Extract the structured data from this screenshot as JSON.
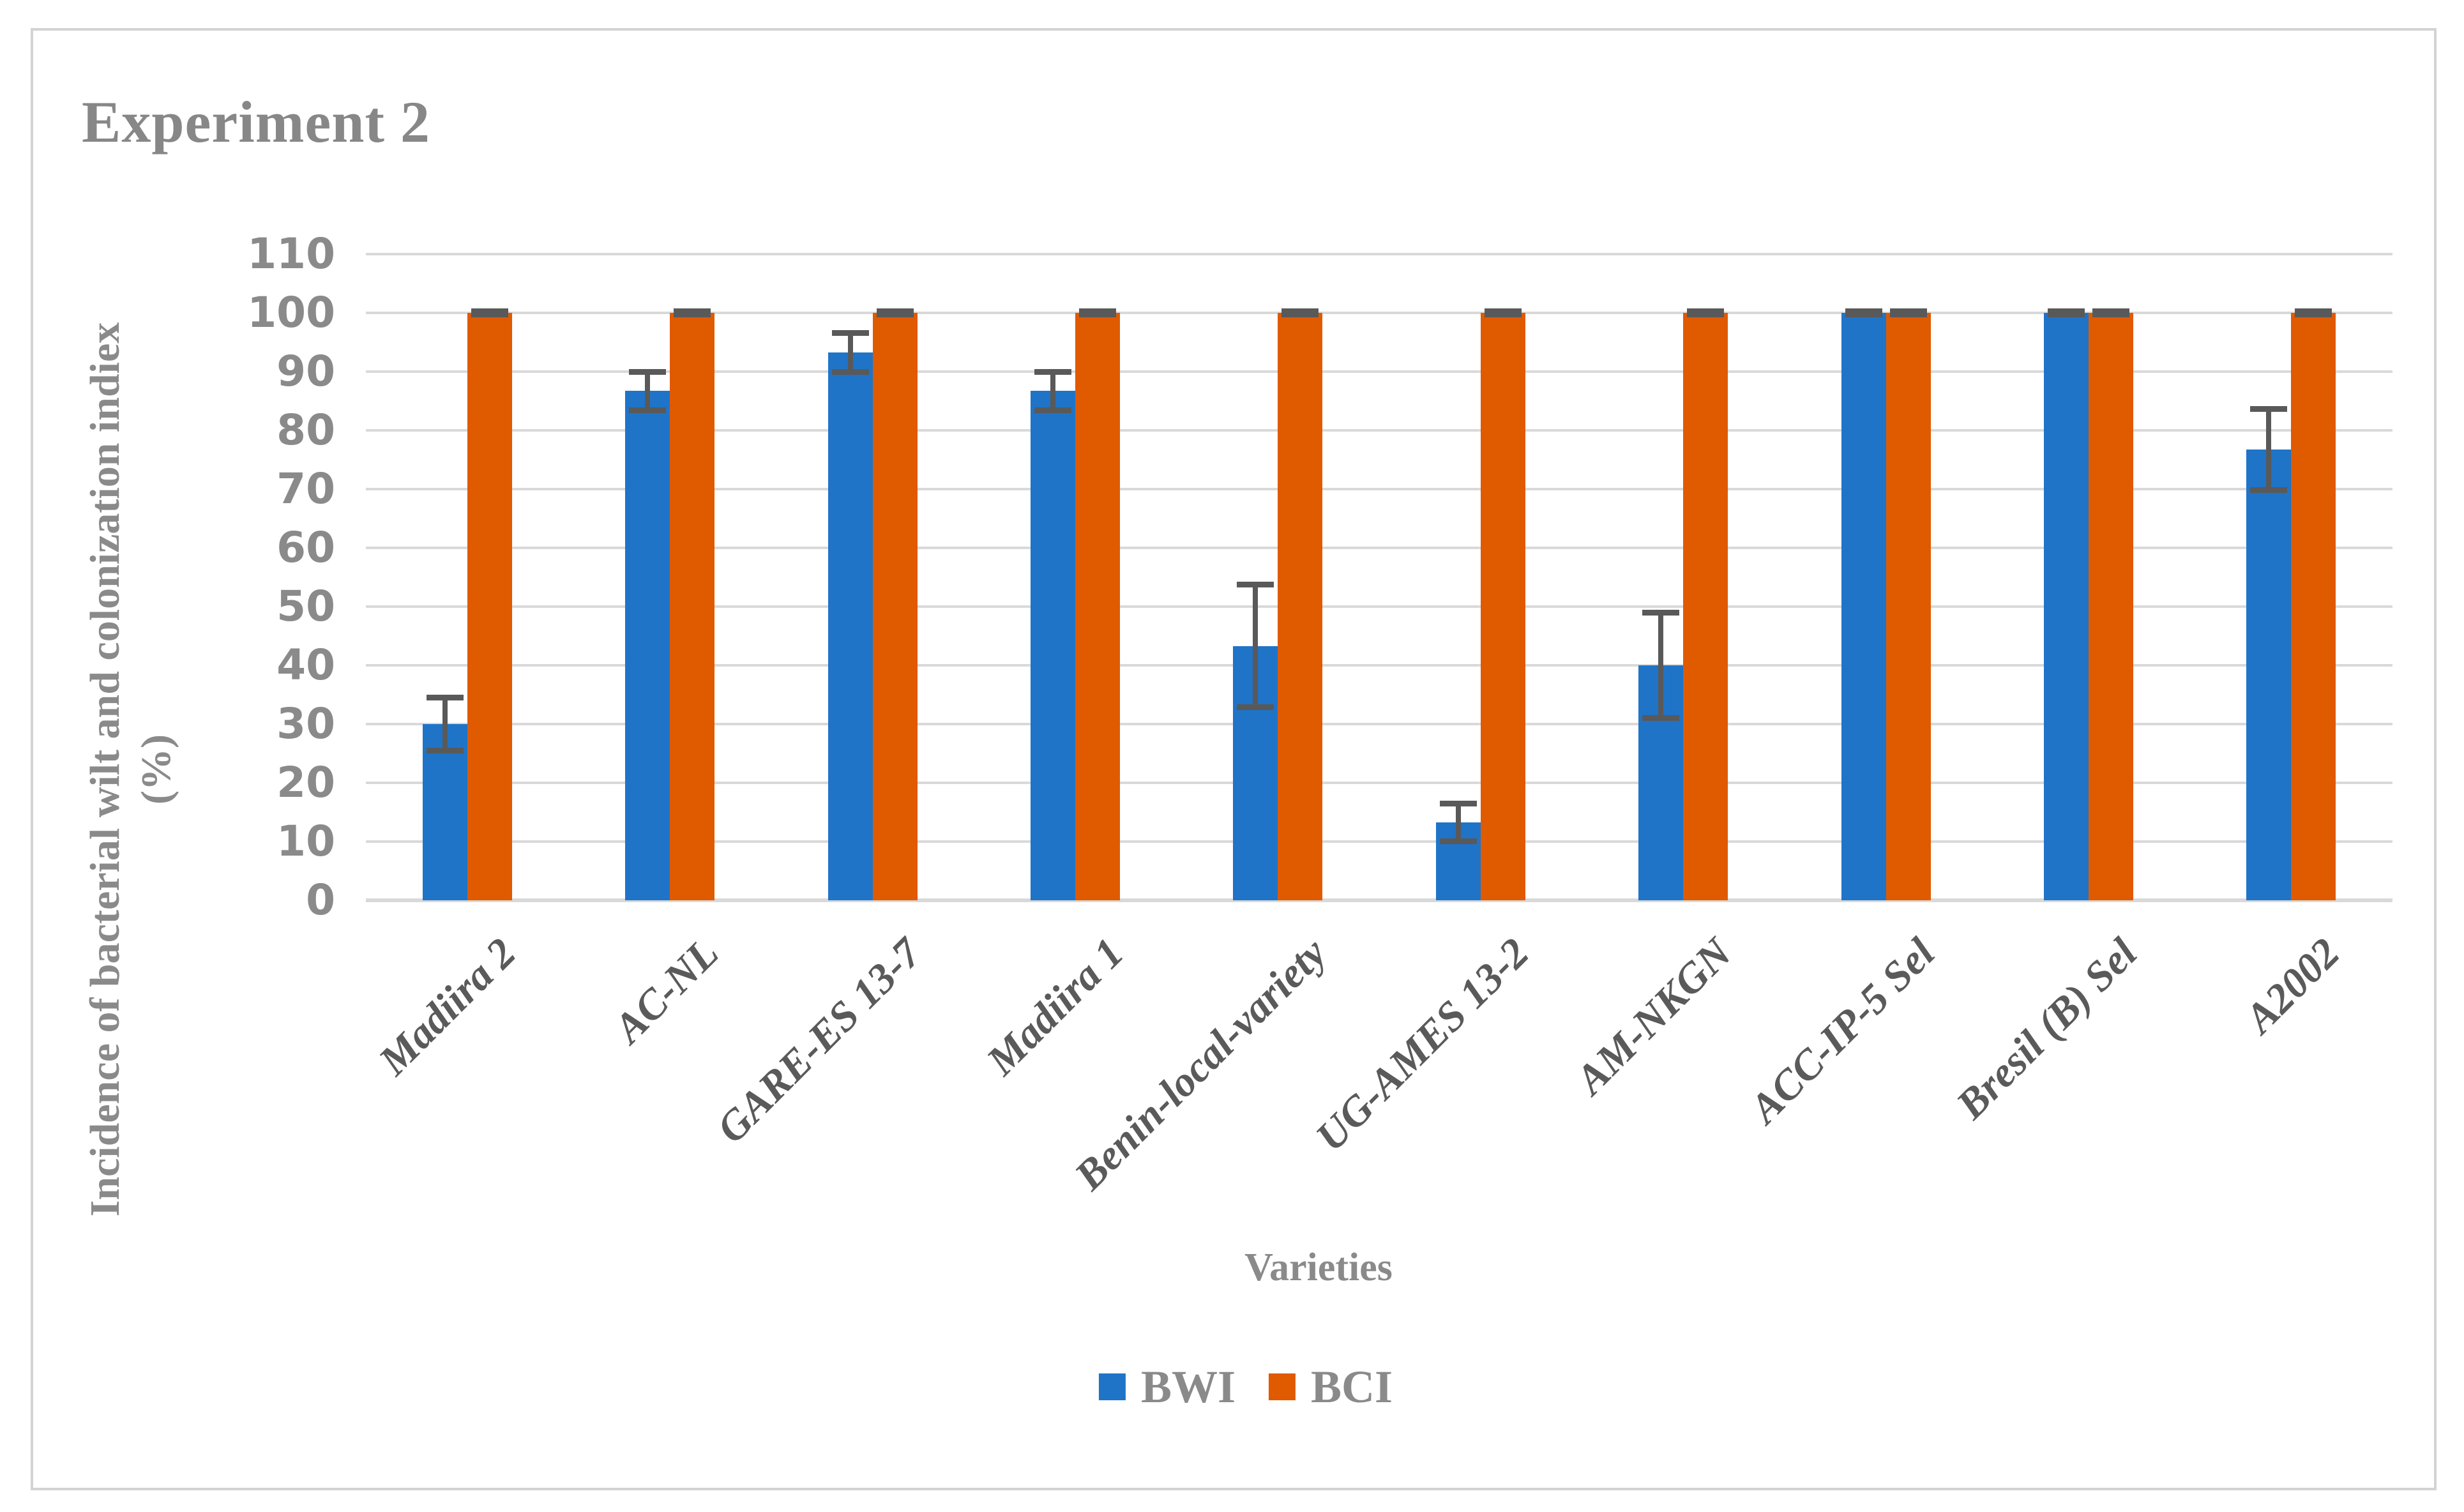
{
  "chart_data": {
    "type": "bar",
    "title": "Experiment 2",
    "xlabel": "Varieties",
    "ylabel": "Incidence of bacterial wilt and colonization indiex",
    "ylabel_unit": "(%)",
    "categories": [
      "Madiira 2",
      "AC-NL",
      "GARE-ES 13-7",
      "Madiira 1",
      "Benin-local-variety",
      "UG-AMES 13-2",
      "AM-NKGN",
      "ACC-IP-5 Sel",
      "Bresil (B) Sel",
      "A2002"
    ],
    "series": [
      {
        "name": "BWI",
        "color": "#1F74C8",
        "values": [
          30,
          86.7,
          93.3,
          86.7,
          43.3,
          13.3,
          40,
          100,
          100,
          76.7
        ],
        "errors": [
          4.5,
          3.3,
          3.3,
          3.3,
          10.4,
          3.2,
          9,
          0.3,
          0.3,
          6.9
        ]
      },
      {
        "name": "BCI",
        "color": "#E05A00",
        "values": [
          100,
          100,
          100,
          100,
          100,
          100,
          100,
          100,
          100,
          100
        ],
        "errors": [
          0.3,
          0.3,
          0.3,
          0.3,
          0.3,
          0.3,
          0.3,
          0.3,
          0.3,
          0.3
        ]
      }
    ],
    "yticks": [
      0,
      10,
      20,
      30,
      40,
      50,
      60,
      70,
      80,
      90,
      100,
      110
    ],
    "ylim": [
      0,
      110
    ],
    "grid": true,
    "legend_position": "bottom",
    "colors": {
      "gridline": "#D9D9D9",
      "error_bar": "#595959",
      "axis_text": "#8A8A8A",
      "category_text": "#5A5A5A",
      "frame_border": "#D3D3D3"
    }
  }
}
